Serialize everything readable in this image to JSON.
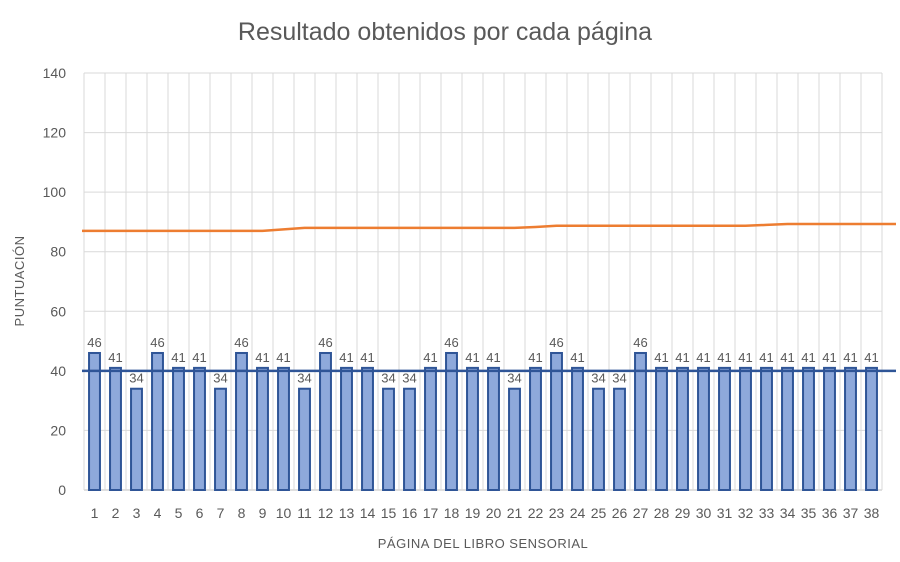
{
  "chart_data": {
    "type": "bar",
    "title": "Resultado obtenidos por cada página",
    "xlabel": "PÁGINA DEL LIBRO SENSORIAL",
    "ylabel": "PUNTUACIÓN",
    "ylim": [
      0,
      140
    ],
    "yticks": [
      0,
      20,
      40,
      60,
      80,
      100,
      120,
      140
    ],
    "grid": true,
    "categories": [
      "1",
      "2",
      "3",
      "4",
      "5",
      "6",
      "7",
      "8",
      "9",
      "10",
      "11",
      "12",
      "13",
      "14",
      "15",
      "16",
      "17",
      "18",
      "19",
      "20",
      "21",
      "22",
      "23",
      "24",
      "25",
      "26",
      "27",
      "28",
      "29",
      "30",
      "31",
      "32",
      "33",
      "34",
      "35",
      "36",
      "37",
      "38"
    ],
    "series": [
      {
        "type": "bar",
        "values": [
          46,
          41,
          34,
          46,
          41,
          41,
          34,
          46,
          41,
          41,
          34,
          46,
          41,
          41,
          34,
          34,
          41,
          46,
          41,
          41,
          34,
          41,
          46,
          41,
          34,
          34,
          46,
          41,
          41,
          41,
          41,
          41,
          41,
          41,
          41,
          41,
          41,
          41
        ],
        "color": "#8EA9DB",
        "border_color": "#2F5597",
        "data_labels": true
      },
      {
        "type": "line",
        "values": [
          40,
          40,
          40,
          40,
          40,
          40,
          40,
          40,
          40,
          40,
          40,
          40,
          40,
          40,
          40,
          40,
          40,
          40,
          40,
          40,
          40,
          40,
          40,
          40,
          40,
          40,
          40,
          40,
          40,
          40,
          40,
          40,
          40,
          40,
          40,
          40,
          40,
          40
        ],
        "color": "#2F5597"
      },
      {
        "type": "line",
        "values": [
          87,
          87,
          87,
          87,
          87,
          87,
          87,
          87,
          87,
          87.5,
          88,
          88,
          88,
          88,
          88,
          88,
          88,
          88,
          88,
          88,
          88,
          88.3,
          88.7,
          88.7,
          88.7,
          88.7,
          88.7,
          88.7,
          88.7,
          88.7,
          88.7,
          88.7,
          89,
          89.3,
          89.3,
          89.3,
          89.3,
          89.3
        ],
        "color": "#ED7D31"
      }
    ],
    "colors": {
      "grid": "#D9D9D9",
      "text": "#595959"
    }
  }
}
